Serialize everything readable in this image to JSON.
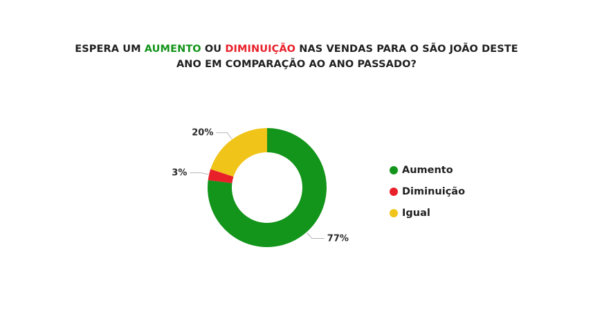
{
  "title": {
    "part1": "ESPERA UM ",
    "highlight_increase": "AUMENTO",
    "part2": " OU ",
    "highlight_decrease": "DIMINUIÇÃO",
    "part3": " NAS VENDAS PARA O SÃO JOÃO DESTE",
    "line2": "ANO EM COMPARAÇÃO AO ANO PASSADO?"
  },
  "colors": {
    "increase": "#13941a",
    "decrease": "#e8202a",
    "equal": "#f0c419"
  },
  "chart_data": {
    "type": "pie",
    "donut": true,
    "title": "ESPERA UM AUMENTO OU DIMINUIÇÃO NAS VENDAS PARA O SÃO JOÃO DESTE ANO EM COMPARAÇÃO AO ANO PASSADO?",
    "categories": [
      "Aumento",
      "Diminuição",
      "Igual"
    ],
    "values": [
      77,
      3,
      20
    ],
    "labels": [
      "77%",
      "3%",
      "20%"
    ],
    "legend_position": "right"
  }
}
